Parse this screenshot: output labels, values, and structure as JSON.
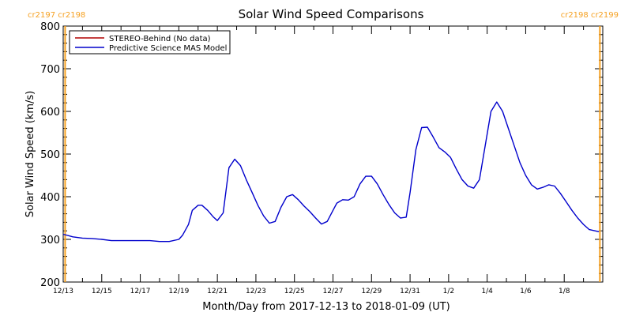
{
  "chart_data": {
    "type": "line",
    "title": "Solar Wind Speed Comparisons",
    "xlabel": "Month/Day from 2017-12-13 to 2018-01-09 (UT)",
    "ylabel": "Solar Wind Speed (km/s)",
    "ylim": [
      200,
      800
    ],
    "yticks": [
      200,
      300,
      400,
      500,
      600,
      700,
      800
    ],
    "xlim": [
      0,
      28
    ],
    "xticks": [
      {
        "x": 0,
        "label": "12/13"
      },
      {
        "x": 2,
        "label": "12/15"
      },
      {
        "x": 4,
        "label": "12/17"
      },
      {
        "x": 6,
        "label": "12/19"
      },
      {
        "x": 8,
        "label": "12/21"
      },
      {
        "x": 10,
        "label": "12/23"
      },
      {
        "x": 12,
        "label": "12/25"
      },
      {
        "x": 14,
        "label": "12/27"
      },
      {
        "x": 16,
        "label": "12/29"
      },
      {
        "x": 18,
        "label": "12/31"
      },
      {
        "x": 20,
        "label": "1/2"
      },
      {
        "x": 22,
        "label": "1/4"
      },
      {
        "x": 24,
        "label": "1/6"
      },
      {
        "x": 26,
        "label": "1/8"
      }
    ],
    "legend_position": "top-left",
    "series": [
      {
        "name": "STEREO-Behind (No data)",
        "color": "#b00000",
        "x": [],
        "y": []
      },
      {
        "name": "Predictive Science MAS Model",
        "color": "#0000cc",
        "x": [
          0,
          0.5,
          1,
          1.5,
          2,
          2.5,
          3,
          3.5,
          4,
          4.5,
          5,
          5.5,
          6,
          6.2,
          6.5,
          6.7,
          7,
          7.2,
          7.5,
          7.8,
          8,
          8.3,
          8.6,
          8.9,
          9.2,
          9.5,
          9.8,
          10.1,
          10.4,
          10.7,
          11,
          11.3,
          11.6,
          11.9,
          12.2,
          12.5,
          12.8,
          13.1,
          13.4,
          13.7,
          14,
          14.2,
          14.5,
          14.8,
          15.1,
          15.4,
          15.7,
          16,
          16.3,
          16.6,
          16.9,
          17.2,
          17.5,
          17.8,
          18,
          18.3,
          18.6,
          18.9,
          19.2,
          19.5,
          19.8,
          20.1,
          20.4,
          20.7,
          21,
          21.3,
          21.6,
          21.9,
          22.2,
          22.5,
          22.8,
          23.1,
          23.4,
          23.7,
          24,
          24.3,
          24.6,
          24.9,
          25.2,
          25.5,
          25.8,
          26.1,
          26.4,
          26.7,
          27,
          27.3,
          27.6,
          27.8
        ],
        "y": [
          312,
          306,
          303,
          302,
          300,
          297,
          297,
          297,
          297,
          297,
          295,
          295,
          300,
          310,
          335,
          368,
          380,
          380,
          368,
          352,
          344,
          362,
          468,
          488,
          473,
          440,
          410,
          380,
          355,
          338,
          342,
          375,
          400,
          405,
          393,
          378,
          365,
          350,
          336,
          342,
          368,
          385,
          393,
          392,
          400,
          430,
          448,
          448,
          430,
          405,
          382,
          362,
          350,
          352,
          410,
          510,
          562,
          563,
          540,
          515,
          505,
          492,
          465,
          440,
          425,
          420,
          440,
          520,
          600,
          622,
          600,
          560,
          520,
          480,
          450,
          428,
          418,
          422,
          428,
          425,
          408,
          388,
          368,
          350,
          335,
          323,
          320,
          318
        ]
      }
    ],
    "carrington_markers": [
      {
        "x": 0.1,
        "label": "cr2197 cr2198",
        "align": "left"
      },
      {
        "x": 27.85,
        "label": "cr2198 cr2199",
        "align": "right"
      }
    ],
    "marker_color": "#f5a020"
  }
}
